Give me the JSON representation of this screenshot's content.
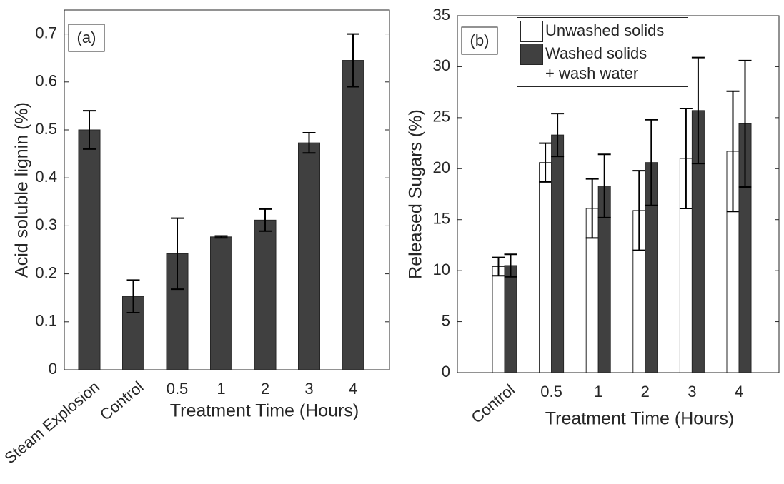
{
  "chart_data": [
    {
      "type": "bar",
      "panel_label": "(a)",
      "ylabel": "Acid soluble lignin (%)",
      "xlabel": "Treatment Time (Hours)",
      "categories": [
        "Steam Explosion",
        "Control",
        "0.5",
        "1",
        "2",
        "3",
        "4"
      ],
      "values": [
        0.5,
        0.153,
        0.242,
        0.277,
        0.312,
        0.473,
        0.645
      ],
      "errors": [
        0.04,
        0.034,
        0.074,
        0.002,
        0.023,
        0.021,
        0.055
      ],
      "color": "#404040",
      "ylim": [
        0,
        0.75
      ],
      "yticks": [
        0,
        0.1,
        0.2,
        0.3,
        0.4,
        0.5,
        0.6,
        0.7
      ]
    },
    {
      "type": "bar",
      "panel_label": "(b)",
      "ylabel": "Released Sugars (%)",
      "xlabel": "Treatment Time (Hours)",
      "categories": [
        "Control",
        "0.5",
        "1",
        "2",
        "3",
        "4"
      ],
      "series": [
        {
          "name": "Unwashed solids",
          "color": "#ffffff",
          "values": [
            10.4,
            20.6,
            16.1,
            15.9,
            21.0,
            21.7
          ],
          "errors": [
            0.9,
            1.9,
            2.9,
            3.9,
            4.9,
            5.9
          ]
        },
        {
          "name": "Washed solids\n+ wash water",
          "color": "#404040",
          "values": [
            10.5,
            23.3,
            18.3,
            20.6,
            25.7,
            24.4
          ],
          "errors": [
            1.1,
            2.1,
            3.1,
            4.2,
            5.2,
            6.2
          ]
        }
      ],
      "ylim": [
        0,
        35
      ],
      "yticks": [
        0,
        5,
        10,
        15,
        20,
        25,
        30,
        35
      ]
    }
  ]
}
